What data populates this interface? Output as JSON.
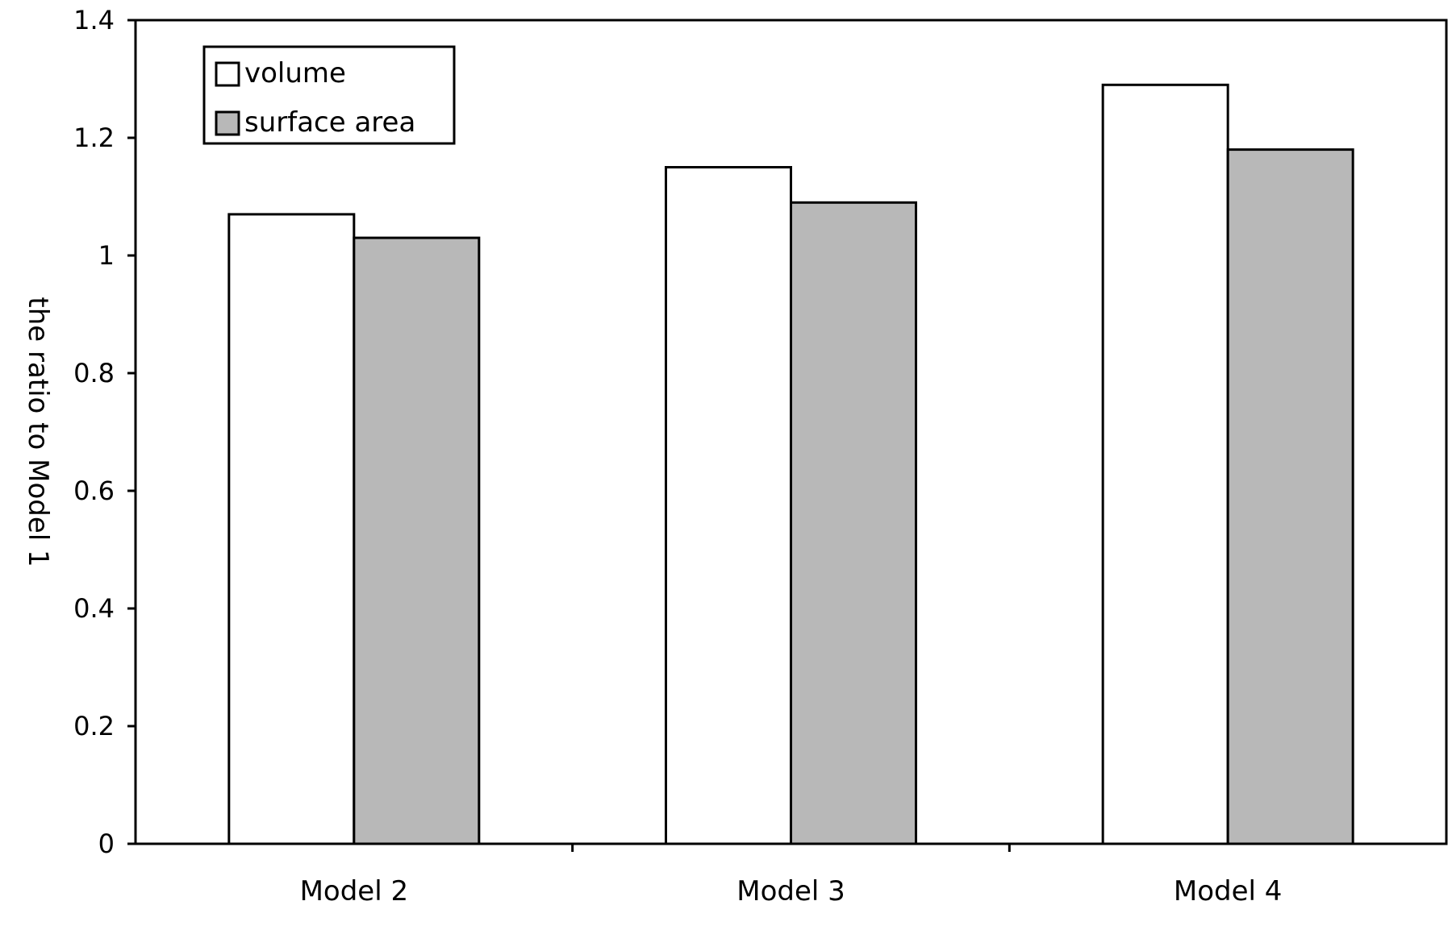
{
  "chart_data": {
    "type": "bar",
    "title": "",
    "xlabel": "",
    "ylabel": "the ratio to Model 1",
    "categories": [
      "Model 2",
      "Model 3",
      "Model 4"
    ],
    "series": [
      {
        "name": "volume",
        "values": [
          1.07,
          1.15,
          1.29
        ],
        "color": "#ffffff"
      },
      {
        "name": "surface area",
        "values": [
          1.03,
          1.09,
          1.18
        ],
        "color": "#b8b8b8"
      }
    ],
    "ylim": [
      0,
      1.4
    ],
    "yticks": [
      0,
      0.2,
      0.4,
      0.6,
      0.8,
      1,
      1.2,
      1.4
    ],
    "ytick_labels": [
      "0",
      "0.2",
      "0.4",
      "0.6",
      "0.8",
      "1",
      "1.2",
      "1.4"
    ],
    "grid": false,
    "legend_position": "top-left"
  }
}
